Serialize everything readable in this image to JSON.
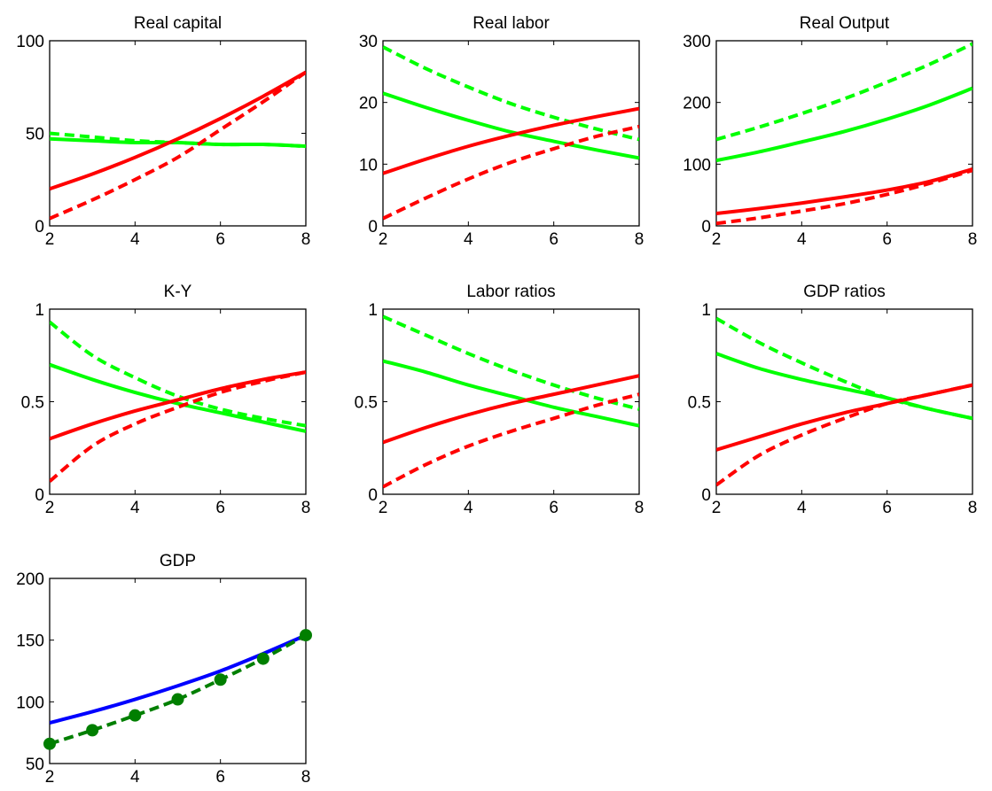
{
  "chart_data": [
    {
      "type": "line",
      "title": "Real capital",
      "xlim": [
        2,
        8
      ],
      "ylim": [
        0,
        100
      ],
      "xticks": [
        2,
        4,
        6,
        8
      ],
      "yticks": [
        0,
        50,
        100
      ],
      "grid": false,
      "x": [
        2,
        3,
        4,
        5,
        6,
        7,
        8
      ],
      "series": [
        {
          "color": "#00ff00",
          "style": "solid",
          "values": [
            47,
            46,
            45,
            45,
            44,
            44,
            43
          ]
        },
        {
          "color": "#00ff00",
          "style": "dashed",
          "values": [
            50,
            48,
            46,
            45,
            44,
            44,
            43
          ]
        },
        {
          "color": "#ff0000",
          "style": "solid",
          "values": [
            20,
            28,
            37,
            47,
            58,
            70,
            83
          ]
        },
        {
          "color": "#ff0000",
          "style": "dashed",
          "values": [
            4,
            14,
            25,
            37,
            52,
            67,
            83
          ]
        }
      ]
    },
    {
      "type": "line",
      "title": "Real labor",
      "xlim": [
        2,
        8
      ],
      "ylim": [
        0,
        30
      ],
      "xticks": [
        2,
        4,
        6,
        8
      ],
      "yticks": [
        0,
        10,
        20,
        30
      ],
      "grid": false,
      "x": [
        2,
        3,
        4,
        5,
        6,
        7,
        8
      ],
      "series": [
        {
          "color": "#00ff00",
          "style": "solid",
          "values": [
            21.5,
            19.2,
            17.1,
            15.2,
            13.7,
            12.3,
            11.0
          ]
        },
        {
          "color": "#00ff00",
          "style": "dashed",
          "values": [
            29.0,
            25.5,
            22.5,
            19.8,
            17.6,
            15.7,
            14.0
          ]
        },
        {
          "color": "#ff0000",
          "style": "solid",
          "values": [
            8.5,
            10.8,
            12.9,
            14.7,
            16.3,
            17.7,
            19.0
          ]
        },
        {
          "color": "#ff0000",
          "style": "dashed",
          "values": [
            1.2,
            4.5,
            7.6,
            10.3,
            12.5,
            14.5,
            16.1
          ]
        }
      ]
    },
    {
      "type": "line",
      "title": "Real Output",
      "xlim": [
        2,
        8
      ],
      "ylim": [
        0,
        300
      ],
      "xticks": [
        2,
        4,
        6,
        8
      ],
      "yticks": [
        0,
        100,
        200,
        300
      ],
      "grid": false,
      "x": [
        2,
        3,
        4,
        5,
        6,
        7,
        8
      ],
      "series": [
        {
          "color": "#00ff00",
          "style": "solid",
          "values": [
            106,
            120,
            136,
            153,
            173,
            196,
            223
          ]
        },
        {
          "color": "#00ff00",
          "style": "dashed",
          "values": [
            140,
            160,
            182,
            206,
            233,
            262,
            295
          ]
        },
        {
          "color": "#ff0000",
          "style": "solid",
          "values": [
            20,
            28,
            37,
            47,
            58,
            72,
            92
          ]
        },
        {
          "color": "#ff0000",
          "style": "dashed",
          "values": [
            4,
            13,
            24,
            36,
            51,
            69,
            90
          ]
        }
      ]
    },
    {
      "type": "line",
      "title": "K-Y",
      "xlim": [
        2,
        8
      ],
      "ylim": [
        0,
        1
      ],
      "xticks": [
        2,
        4,
        6,
        8
      ],
      "yticks": [
        0,
        0.5,
        1
      ],
      "ytick_labels": [
        "0",
        "0.5",
        "1"
      ],
      "grid": false,
      "x": [
        2,
        3,
        4,
        5,
        6,
        7,
        8
      ],
      "series": [
        {
          "color": "#00ff00",
          "style": "solid",
          "values": [
            0.7,
            0.62,
            0.55,
            0.49,
            0.44,
            0.39,
            0.34
          ]
        },
        {
          "color": "#00ff00",
          "style": "dashed",
          "values": [
            0.93,
            0.75,
            0.63,
            0.53,
            0.46,
            0.41,
            0.37
          ]
        },
        {
          "color": "#ff0000",
          "style": "solid",
          "values": [
            0.3,
            0.38,
            0.45,
            0.51,
            0.57,
            0.62,
            0.66
          ]
        },
        {
          "color": "#ff0000",
          "style": "dashed",
          "values": [
            0.07,
            0.26,
            0.38,
            0.47,
            0.55,
            0.61,
            0.66
          ]
        }
      ]
    },
    {
      "type": "line",
      "title": "Labor ratios",
      "xlim": [
        2,
        8
      ],
      "ylim": [
        0,
        1
      ],
      "xticks": [
        2,
        4,
        6,
        8
      ],
      "yticks": [
        0,
        0.5,
        1
      ],
      "ytick_labels": [
        "0",
        "0.5",
        "1"
      ],
      "grid": false,
      "x": [
        2,
        3,
        4,
        5,
        6,
        7,
        8
      ],
      "series": [
        {
          "color": "#00ff00",
          "style": "solid",
          "values": [
            0.72,
            0.66,
            0.59,
            0.53,
            0.47,
            0.42,
            0.37
          ]
        },
        {
          "color": "#00ff00",
          "style": "dashed",
          "values": [
            0.96,
            0.86,
            0.76,
            0.67,
            0.59,
            0.52,
            0.46
          ]
        },
        {
          "color": "#ff0000",
          "style": "solid",
          "values": [
            0.28,
            0.36,
            0.43,
            0.49,
            0.54,
            0.59,
            0.64
          ]
        },
        {
          "color": "#ff0000",
          "style": "dashed",
          "values": [
            0.04,
            0.16,
            0.26,
            0.34,
            0.41,
            0.48,
            0.54
          ]
        }
      ]
    },
    {
      "type": "line",
      "title": "GDP ratios",
      "xlim": [
        2,
        8
      ],
      "ylim": [
        0,
        1
      ],
      "xticks": [
        2,
        4,
        6,
        8
      ],
      "yticks": [
        0,
        0.5,
        1
      ],
      "ytick_labels": [
        "0",
        "0.5",
        "1"
      ],
      "grid": false,
      "x": [
        2,
        3,
        4,
        5,
        6,
        7,
        8
      ],
      "series": [
        {
          "color": "#00ff00",
          "style": "solid",
          "values": [
            0.76,
            0.68,
            0.62,
            0.57,
            0.52,
            0.46,
            0.41
          ]
        },
        {
          "color": "#00ff00",
          "style": "dashed",
          "values": [
            0.95,
            0.82,
            0.71,
            0.61,
            0.52,
            0.46,
            0.41
          ]
        },
        {
          "color": "#ff0000",
          "style": "solid",
          "values": [
            0.24,
            0.31,
            0.38,
            0.44,
            0.49,
            0.54,
            0.59
          ]
        },
        {
          "color": "#ff0000",
          "style": "dashed",
          "values": [
            0.05,
            0.21,
            0.32,
            0.41,
            0.49,
            0.54,
            0.59
          ]
        }
      ]
    },
    {
      "type": "line",
      "title": "GDP",
      "xlim": [
        2,
        8
      ],
      "ylim": [
        50,
        200
      ],
      "xticks": [
        2,
        4,
        6,
        8
      ],
      "yticks": [
        50,
        100,
        150,
        200
      ],
      "grid": false,
      "x": [
        2,
        3,
        4,
        5,
        6,
        7,
        8
      ],
      "series": [
        {
          "color": "#0000ff",
          "style": "solid",
          "values": [
            83,
            92,
            102,
            113,
            125,
            139,
            154
          ]
        },
        {
          "color": "#007f00",
          "style": "dashed",
          "marker": "circle",
          "values": [
            66,
            77,
            89,
            102,
            118,
            135,
            154
          ]
        }
      ]
    }
  ]
}
